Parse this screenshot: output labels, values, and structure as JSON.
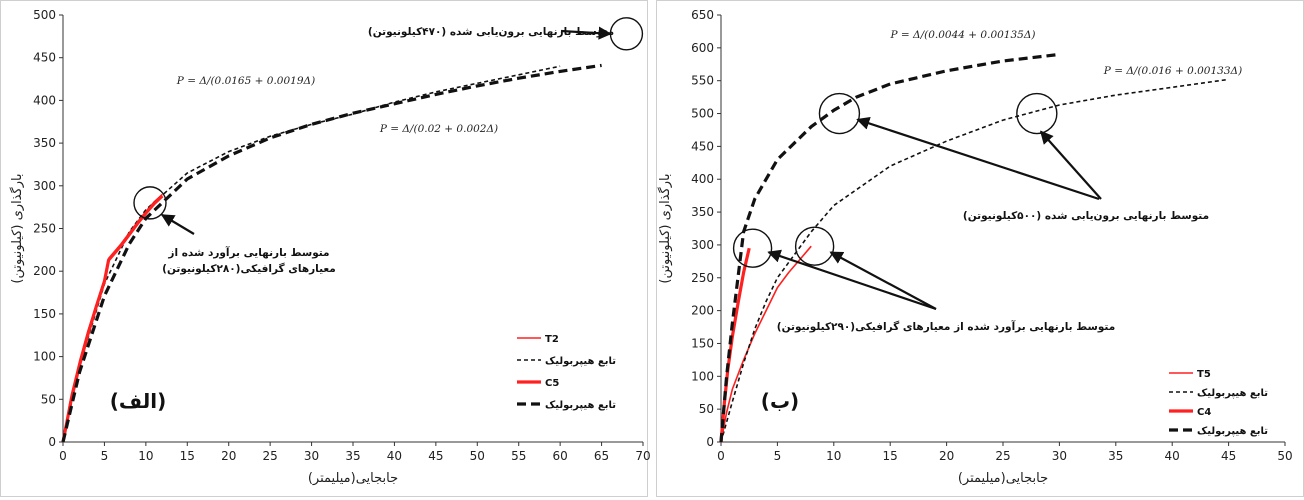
{
  "chart_data": [
    {
      "type": "line",
      "panel_label": "(الف)",
      "xlabel": "جابجایی(میلیمتر)",
      "ylabel": "بارگذاری (کیلونیوتن)",
      "xlim": [
        0,
        70
      ],
      "ylim": [
        0,
        500
      ],
      "xticks": [
        0,
        5,
        10,
        15,
        20,
        25,
        30,
        35,
        40,
        45,
        50,
        55,
        60,
        65,
        70
      ],
      "xtick_labels": [
        "0",
        "5",
        "10",
        "15",
        "20",
        "25",
        "30",
        "35",
        "40",
        "45",
        "50",
        "55",
        "60",
        "65",
        "70"
      ],
      "yticks": [
        0,
        50,
        100,
        150,
        200,
        250,
        300,
        350,
        400,
        450,
        500
      ],
      "grid": false,
      "legend_position": "bottom-right",
      "series": [
        {
          "name": "T2",
          "style": "solid-thin",
          "color": "#ff2020",
          "x": [
            0,
            1,
            2,
            3,
            4,
            5,
            5.5,
            7,
            8,
            9,
            10,
            11,
            12
          ],
          "y": [
            0,
            55,
            95,
            130,
            160,
            190,
            215,
            232,
            245,
            258,
            270,
            281,
            290
          ]
        },
        {
          "name": "تابع هیپربولیک",
          "style": "dash-thin",
          "color": "#111111",
          "x": [
            0,
            2,
            5,
            8,
            10,
            15,
            20,
            25,
            30,
            35,
            40,
            45,
            50,
            55,
            60
          ],
          "y": [
            0,
            89,
            185,
            246,
            272,
            315,
            340,
            358,
            372,
            384,
            398,
            410,
            420,
            430,
            440
          ]
        },
        {
          "name": "C5",
          "style": "solid-thick",
          "color": "#ff2020",
          "x": [
            0,
            1,
            2,
            3,
            4,
            5,
            5.5,
            7,
            8,
            9,
            10,
            11,
            12
          ],
          "y": [
            0,
            50,
            90,
            126,
            158,
            188,
            213,
            230,
            243,
            256,
            268,
            279,
            288
          ]
        },
        {
          "name": "تابع هیپربولیک",
          "style": "dash-thick",
          "color": "#111111",
          "x": [
            0,
            2,
            5,
            8,
            10,
            15,
            20,
            25,
            30,
            35,
            40,
            45,
            50,
            55,
            60,
            65
          ],
          "y": [
            0,
            82,
            171,
            232,
            262,
            308,
            335,
            356,
            372,
            385,
            396,
            407,
            417,
            426,
            434,
            441
          ]
        }
      ],
      "formulas": [
        "P = Δ/(0.0165 + 0.0019Δ)",
        "P = Δ/(0.02 + 0.002Δ)"
      ],
      "annotations": [
        {
          "text": "متوسط بارنهایی برون‌یابی شده (۴۷۰کیلونیوتن)",
          "circle_at": [
            68,
            478
          ]
        },
        {
          "text_lines": [
            "متوسط بارنهایی برآورد شده از",
            "معیارهای گرافیکی(۲۸۰کیلونیوتن)"
          ],
          "circle_at": [
            10.5,
            280
          ]
        }
      ]
    },
    {
      "type": "line",
      "panel_label": "(ب)",
      "xlabel": "جابجایی(میلیمتر)",
      "ylabel": "بارگذاری (کیلونیوتن)",
      "xlim": [
        0,
        50
      ],
      "ylim": [
        0,
        650
      ],
      "xticks": [
        0,
        5,
        10,
        15,
        20,
        25,
        30,
        35,
        40,
        45,
        50
      ],
      "xtick_labels": [
        "0",
        "5",
        "10",
        "15",
        "20",
        "25",
        "30",
        "35",
        "40",
        "45",
        "50"
      ],
      "yticks": [
        0,
        50,
        100,
        150,
        200,
        250,
        300,
        350,
        400,
        450,
        500,
        550,
        600,
        650
      ],
      "grid": false,
      "legend_position": "bottom-right",
      "series": [
        {
          "name": "T5",
          "style": "solid-thin",
          "color": "#ff2020",
          "x": [
            0,
            0.5,
            1,
            2,
            3,
            4,
            5,
            6,
            7,
            8
          ],
          "y": [
            0,
            45,
            80,
            125,
            165,
            200,
            235,
            258,
            278,
            298
          ]
        },
        {
          "name": "تابع هیپربولیک",
          "style": "dash-thin",
          "color": "#111111",
          "x": [
            0,
            1,
            2,
            3,
            4,
            5,
            8,
            10,
            15,
            20,
            25,
            30,
            35,
            40,
            45
          ],
          "y": [
            0,
            61,
            120,
            172,
            214,
            250,
            320,
            360,
            420,
            458,
            490,
            513,
            528,
            540,
            552
          ]
        },
        {
          "name": "C4",
          "style": "solid-thick",
          "color": "#ff2020",
          "x": [
            0,
            0.3,
            0.6,
            1,
            1.5,
            2,
            2.5
          ],
          "y": [
            0,
            60,
            110,
            160,
            210,
            258,
            295
          ]
        },
        {
          "name": "تابع هیپربولیک",
          "style": "dash-thick",
          "color": "#111111",
          "x": [
            0,
            0.5,
            1,
            2,
            3,
            5,
            8,
            10,
            12,
            15,
            20,
            25,
            30
          ],
          "y": [
            0,
            100,
            180,
            320,
            370,
            430,
            480,
            505,
            525,
            545,
            565,
            580,
            590
          ]
        }
      ],
      "formulas": [
        "P = Δ/(0.0044 + 0.00135Δ)",
        "P = Δ/(0.016 + 0.00133Δ)"
      ],
      "annotations": [
        {
          "text": "متوسط بارنهایی برون‌یابی شده (۵۰۰کیلونیوتن)",
          "circles_at": [
            [
              10.5,
              500
            ],
            [
              28,
              500
            ]
          ]
        },
        {
          "text": "متوسط بارنهایی برآورد شده از معیارهای گرافیکی(۲۹۰کیلونیوتن)",
          "circles_at": [
            [
              2.8,
              295
            ],
            [
              8.3,
              298
            ]
          ]
        }
      ]
    }
  ]
}
